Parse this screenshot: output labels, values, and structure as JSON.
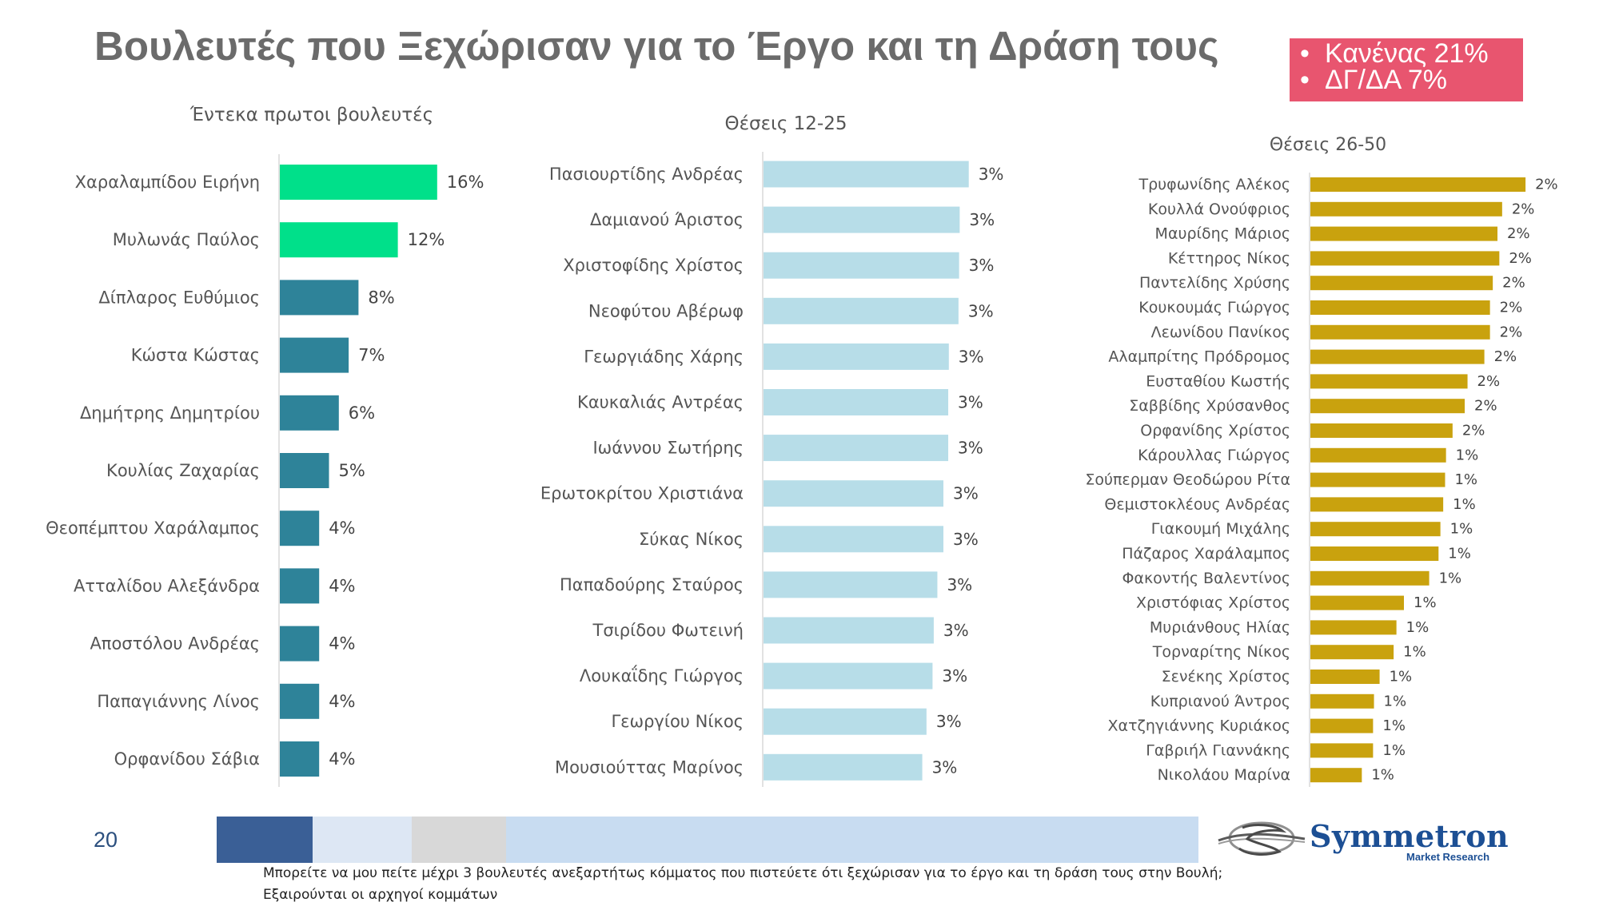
{
  "slide": {
    "title": "Βουλευτές που Ξεχώρισαν για το Έργο και τη Δράση τους",
    "page_number": "20",
    "note_lines": [
      "Κανένας 21%",
      "ΔΓ/ΔΑ 7%"
    ],
    "footnote_lines": [
      "Μπορείτε να μου πείτε μέχρι 3 βουλευτές ανεξαρτήτως κόμματος που πιστεύετε ότι ξεχώρισαν για το έργο και τη δράση τους στην Βουλή;",
      "Εξαιρούνται οι αρχηγοί κομμάτων"
    ],
    "logo": {
      "name": "Symmetron",
      "tagline": "Market Research"
    }
  },
  "colors": {
    "title": "#6b6b6b",
    "note_box": "#e8556f",
    "top_bar": "#00e08a",
    "teal_bar": "#2e8399",
    "light_blue_bar": "#b7dde8",
    "gold_bar": "#c9a20e",
    "footer_segments": [
      "#3a5f96",
      "#dde7f4",
      "#d8d8d8",
      "#c8dcf1"
    ],
    "logo": "#1c4f94"
  },
  "chart_data": [
    {
      "type": "bar",
      "orientation": "horizontal",
      "title": "Έντεκα πρωτοι βουλευτές",
      "categories": [
        "Χαραλαμπίδου Ειρήνη",
        "Μυλωνάς Παύλος",
        "Δίπλαρος Ευθύμιος",
        "Κώστα Κώστας",
        "Δημήτρης Δημητρίου",
        "Κουλίας Ζαχαρίας",
        "Θεοπέμπτου Χαράλαμπος",
        "Ατταλίδου Αλεξάνδρα",
        "Αποστόλου Ανδρέας",
        "Παπαγιάννης Λίνος",
        "Ορφανίδου Σάβια"
      ],
      "values": [
        16,
        12,
        8,
        7,
        6,
        5,
        4,
        4,
        4,
        4,
        4
      ],
      "labels": [
        "16%",
        "12%",
        "8%",
        "7%",
        "6%",
        "5%",
        "4%",
        "4%",
        "4%",
        "4%",
        "4%"
      ],
      "highlight_top": 2,
      "unit": "%"
    },
    {
      "type": "bar",
      "orientation": "horizontal",
      "title": "Θέσεις 12-25",
      "categories": [
        "Πασιουρτίδης Ανδρέας",
        "Δαμιανού Άριστος",
        "Χριστοφίδης Χρίστος",
        "Νεοφύτου Αβέρωφ",
        "Γεωργιάδης Χάρης",
        "Καυκαλιάς Αντρέας",
        "Ιωάννου Σωτήρης",
        "Ερωτοκρίτου Χριστιάνα",
        "Σύκας Νίκος",
        "Παπαδούρης Σταύρος",
        "Τσιρίδου Φωτεινή",
        "Λουκαΐδης Γιώργος",
        "Γεωργίου Νίκος",
        "Μουσιούττας Μαρίνος"
      ],
      "values": [
        3.4,
        3.25,
        3.24,
        3.23,
        3.07,
        3.06,
        3.06,
        2.98,
        2.98,
        2.88,
        2.82,
        2.8,
        2.7,
        2.63
      ],
      "labels": [
        "3%",
        "3%",
        "3%",
        "3%",
        "3%",
        "3%",
        "3%",
        "3%",
        "3%",
        "3%",
        "3%",
        "3%",
        "3%",
        "3%"
      ],
      "unit": "%"
    },
    {
      "type": "bar",
      "orientation": "horizontal",
      "title": "Θέσεις 26-50",
      "categories": [
        "Τρυφωνίδης Αλέκος",
        "Κουλλά Ονούφριος",
        "Μαυρίδης Μάριος",
        "Κέττηρος Νίκος",
        "Παντελίδης Χρύσης",
        "Κουκουμάς Γιώργος",
        "Λεωνίδου Πανίκος",
        "Αλαμπρίτης Πρόδρομος",
        "Ευσταθίου Κωστής",
        "Σαββίδης Χρύσανθος",
        "Ορφανίδης Χρίστος",
        "Κάρουλλας Γιώργος",
        "Σούπερμαν Θεοδώρου Ρίτα",
        "Θεμιστοκλέους Ανδρέας",
        "Γιακουμή Μιχάλης",
        "Πάζαρος Χαράλαμπος",
        "Φακοντής Βαλεντίνος",
        "Χριστόφιας Χρίστος",
        "Μυριάνθους Ηλίας",
        "Τορναρίτης Νίκος",
        "Σενέκης Χρίστος",
        "Κυπριανού Άντρος",
        "Χατζηγιάννης Κυριάκος",
        "Γαβριήλ Γιαννάκης",
        "Νικολάου Μαρίνα"
      ],
      "values": [
        2.3,
        2.05,
        2.0,
        2.02,
        1.95,
        1.92,
        1.92,
        1.86,
        1.68,
        1.65,
        1.52,
        1.45,
        1.44,
        1.42,
        1.39,
        1.37,
        1.27,
        1.0,
        0.92,
        0.89,
        0.74,
        0.68,
        0.67,
        0.67,
        0.55
      ],
      "labels": [
        "2%",
        "2%",
        "2%",
        "2%",
        "2%",
        "2%",
        "2%",
        "2%",
        "2%",
        "2%",
        "2%",
        "1%",
        "1%",
        "1%",
        "1%",
        "1%",
        "1%",
        "1%",
        "1%",
        "1%",
        "1%",
        "1%",
        "1%",
        "1%",
        "1%"
      ],
      "unit": "%"
    }
  ]
}
